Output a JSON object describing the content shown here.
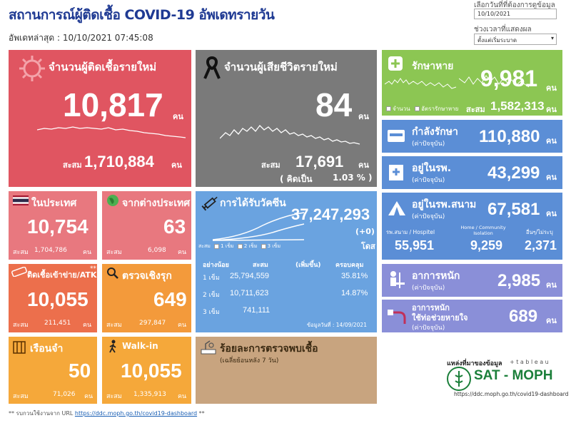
{
  "header": {
    "title": "สถานการณ์ผู้ติดเชื้อ COVID-19 อัพเดทรายวัน",
    "updated_label": "อัพเดทล่าสุด :",
    "updated_value": "10/10/2021 07:45:08"
  },
  "filters": {
    "date_label": "เลือกวันที่ที่ต้องการดูข้อมูล",
    "date_value": "10/10/2021",
    "period_label": "ช่วงเวลาที่แสดงผล",
    "period_value": "ตั้งแต่เริ่มระบาด"
  },
  "new_cases": {
    "title": "จำนวนผู้ติดเชื้อรายใหม่",
    "value": "10,817",
    "unit": "คน",
    "cum_label": "สะสม",
    "cum_value": "1,710,884",
    "cum_unit": "คน"
  },
  "deaths": {
    "title": "จำนวนผู้เสียชีวิตรายใหม่",
    "value": "84",
    "unit": "คน",
    "cum_label": "สะสม",
    "cum_value": "17,691",
    "cum_unit": "คน",
    "pct_label": "( คิดเป็น",
    "pct_value": "1.03 % )"
  },
  "recovered": {
    "title": "รักษาหาย",
    "value": "9,981",
    "unit": "คน",
    "legend_a": "จำนวน",
    "legend_b": "อัตรารักษาหาย",
    "cum_label": "สะสม",
    "cum_value": "1,582,313",
    "cum_unit": "คน"
  },
  "treating": {
    "title": "กำลังรักษา",
    "sub": "(ค่าปัจจุบัน)",
    "value": "110,880",
    "unit": "คน"
  },
  "hospital": {
    "title": "อยู่ในรพ.",
    "sub": "(ค่าปัจจุบัน)",
    "value": "43,299",
    "unit": "คน"
  },
  "field_hospital": {
    "title": "อยู่ในรพ.สนาม",
    "sub": "(ค่าปัจจุบัน)",
    "value": "67,581",
    "unit": "คน",
    "col1_label": "รพ.สนาม / Hospitel",
    "col1_value": "55,951",
    "col2_label": "Home / Community Isolation",
    "col2_value": "9,259",
    "col3_label": "อื่นๆ/ไม่ระบุ",
    "col3_value": "2,371"
  },
  "severe": {
    "title": "อาการหนัก",
    "sub": "(ค่าปัจจุบัน)",
    "value": "2,985",
    "unit": "คน"
  },
  "ventilator": {
    "title": "อาการหนัก",
    "title2": "ใช้ท่อช่วยหายใจ",
    "sub": "(ค่าปัจจุบัน)",
    "value": "689",
    "unit": "คน"
  },
  "domestic": {
    "title": "ในประเทศ",
    "value": "10,754",
    "cum_label": "สะสม",
    "cum_value": "1,704,786",
    "cum_unit": "คน"
  },
  "foreign": {
    "title": "จากต่างประเทศ",
    "value": "63",
    "cum_label": "สะสม",
    "cum_value": "6,098",
    "cum_unit": "คน"
  },
  "network": {
    "title": "ติดเชื้อเข้าข่าย/ATK",
    "note": "**",
    "value": "10,055",
    "cum_label": "สะสม",
    "cum_value": "211,451",
    "cum_unit": "คน"
  },
  "proactive": {
    "title": "ตรวจเชิงรุก",
    "value": "649",
    "cum_label": "สะสม",
    "cum_value": "297,847",
    "cum_unit": "คน"
  },
  "prison": {
    "title": "เรือนจำ",
    "value": "50",
    "cum_label": "สะสม",
    "cum_value": "71,026",
    "cum_unit": "คน"
  },
  "walkin": {
    "title": "Walk-in",
    "value": "10,055",
    "cum_label": "สะสม",
    "cum_value": "1,335,913",
    "cum_unit": "คน"
  },
  "vaccine": {
    "title": "การได้รับวัคซีน",
    "total": "37,247,293",
    "delta": "(+0)",
    "unit": "โดส",
    "legend_label": "สะสม",
    "legend": [
      "1 เข็ม",
      "2 เข็ม",
      "3 เข็ม"
    ],
    "col_dose": "อย่างน้อย",
    "col_cum": "สะสม",
    "col_inc": "(เพิ่มขึ้น)",
    "col_cov": "ครอบคลุม",
    "rows": [
      {
        "dose": "1 เข็ม",
        "cum": "25,794,559",
        "inc": "",
        "cov": "35.81%"
      },
      {
        "dose": "2 เข็ม",
        "cum": "10,711,623",
        "inc": "",
        "cov": "14.87%"
      },
      {
        "dose": "3 เข็ม",
        "cum": "741,111",
        "inc": "",
        "cov": ""
      }
    ],
    "as_of": "ข้อมูลวันที่ : 14/09/2021"
  },
  "positivity": {
    "title": "ร้อยละการตรวจพบเชื้อ",
    "sub": "(เฉลี่ยย้อนหลัง 7 วัน)"
  },
  "source": {
    "label": "แหล่งที่มาของข้อมูล",
    "tableau": "+ t a b l e a u",
    "brand": "SAT - MOPH",
    "url": "https://ddc.moph.go.th/covid19-dashboard"
  },
  "footer": {
    "prefix": "** รบกวนใช้งานจาก URL",
    "link": "https://ddc.moph.go.th/covid19-dashboard",
    "suffix": "**"
  },
  "colors": {
    "red": "#e05561",
    "gray": "#7a7a7a",
    "green": "#8cc653",
    "blue": "#5b8ed6",
    "salmon": "#e8787f",
    "orange_red": "#ec6f4c",
    "orange": "#f39a3b",
    "amber": "#f5a83a",
    "vaccine_blue": "#6aa3e0",
    "tan": "#c8a47f",
    "purple": "#8a8fd8"
  }
}
